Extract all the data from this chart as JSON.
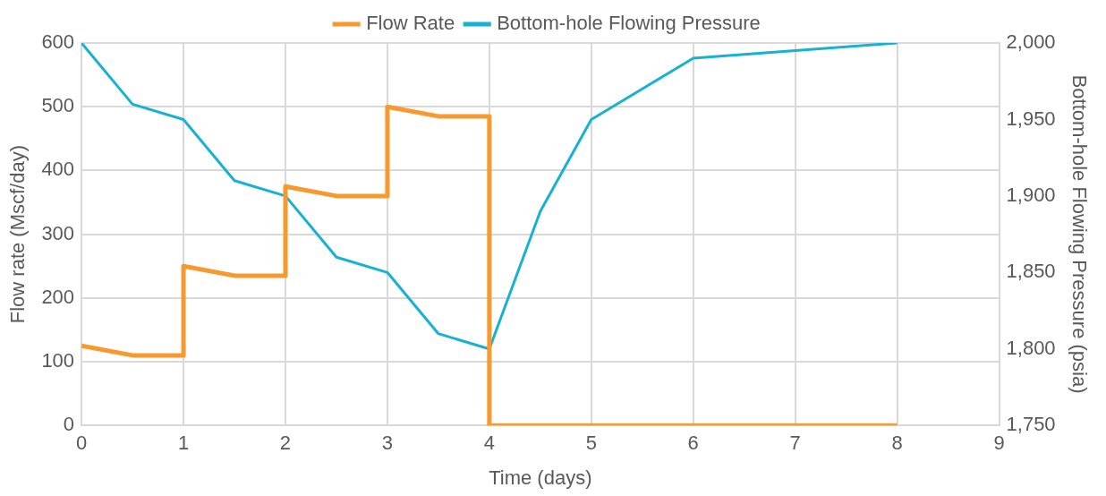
{
  "chart_data": {
    "type": "line",
    "xlabel": "Time (days)",
    "ylabel": "Flow rate (Mscf/day)",
    "y2label": "Bottom-hole Flowing Pressure (psia)",
    "xlim": [
      0,
      9
    ],
    "xticks": [
      0,
      1,
      2,
      3,
      4,
      5,
      6,
      7,
      8,
      9
    ],
    "ylim": [
      0,
      600
    ],
    "yticks": [
      0,
      100,
      200,
      300,
      400,
      500,
      600
    ],
    "y2lim": [
      1750,
      2000
    ],
    "y2ticks": [
      {
        "value": 1750,
        "label": "1,750"
      },
      {
        "value": 1800,
        "label": "1,800"
      },
      {
        "value": 1850,
        "label": "1,850"
      },
      {
        "value": 1900,
        "label": "1,900"
      },
      {
        "value": 1950,
        "label": "1,950"
      },
      {
        "value": 2000,
        "label": "2,000"
      }
    ],
    "grid": true,
    "legend": "top",
    "marker": "none",
    "line_style": "solid",
    "series": [
      {
        "name": "Flow Rate",
        "color": "#f7992e",
        "x": [
          0,
          0.5,
          1,
          1,
          1.5,
          2,
          2,
          2.5,
          3,
          3,
          3.5,
          4,
          4,
          5,
          6,
          7,
          8
        ],
        "values": [
          125,
          110,
          110,
          250,
          235,
          235,
          375,
          360,
          360,
          500,
          485,
          485,
          0,
          0,
          0,
          0,
          0
        ]
      },
      {
        "name": "Bottom-hole Flowing Pressure",
        "color": "#17b1d4",
        "axis": "y2",
        "x": [
          0,
          0.5,
          1,
          1.5,
          2,
          2.5,
          3,
          3.5,
          4,
          4.5,
          5,
          6,
          7,
          8
        ],
        "values": [
          2000,
          1960,
          1950,
          1910,
          1900,
          1860,
          1850,
          1810,
          1800,
          1890,
          1950,
          1990,
          1995,
          2000
        ]
      }
    ]
  }
}
